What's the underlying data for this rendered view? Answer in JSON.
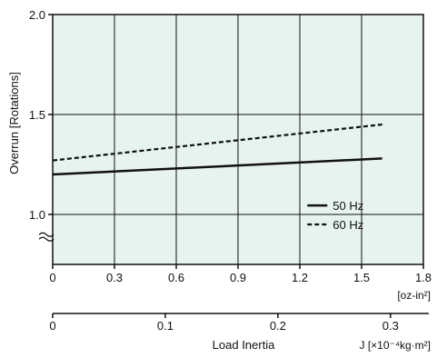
{
  "chart_data": {
    "type": "line",
    "ylabel": "Overrun [Rotations]",
    "xlabel": "Load Inertia",
    "x_unit_oz": "[oz-in²]",
    "x_unit_si": "J [×10⁻⁴kg·m²]",
    "ylim": [
      0.75,
      2.0
    ],
    "y_broken_axis": true,
    "xlim": [
      0,
      1.8
    ],
    "y_ticks": [
      "1.0",
      "1.5",
      "2.0"
    ],
    "y_tick_values": [
      1.0,
      1.5,
      2.0
    ],
    "x_ticks": [
      "0",
      "0.3",
      "0.6",
      "0.9",
      "1.2",
      "1.5",
      "1.8"
    ],
    "x_tick_values": [
      0,
      0.3,
      0.6,
      0.9,
      1.2,
      1.5,
      1.8
    ],
    "x2_ticks": [
      "0",
      "0.1",
      "0.2",
      "0.3"
    ],
    "x2_tick_values": [
      0,
      0.1,
      0.2,
      0.3
    ],
    "grid": true,
    "legend_position": "bottom-right",
    "series": [
      {
        "name": "50 Hz",
        "style": "solid",
        "x": [
          0,
          1.6
        ],
        "y": [
          1.2,
          1.28
        ]
      },
      {
        "name": "60 Hz",
        "style": "dashed",
        "x": [
          0,
          1.6
        ],
        "y": [
          1.27,
          1.45
        ]
      }
    ],
    "colors": {
      "plot_background": "#e6f3ef",
      "line": "#111111",
      "grid": "#111111"
    }
  }
}
